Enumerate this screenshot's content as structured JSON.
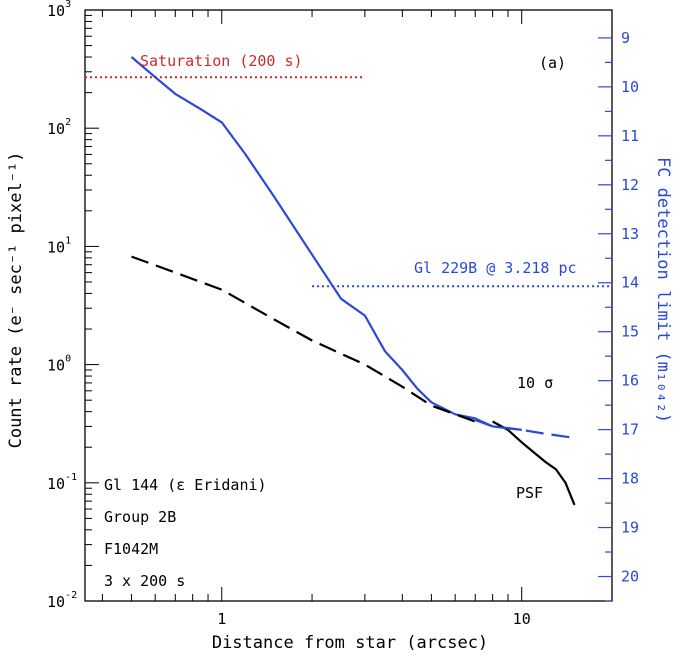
{
  "chart_data": {
    "type": "line",
    "panel_label": "(a)",
    "x_scale": "log",
    "y_scale": "log",
    "xlim": [
      0.35,
      20
    ],
    "ylim": [
      0.01,
      1000
    ],
    "xlabel": "Distance from star (arcsec)",
    "ylabel": "Count rate (e⁻ sec⁻¹ pixel⁻¹)",
    "y2label": "FC detection limit (m₁₀₄₂)",
    "x_ticks": [
      {
        "value": 1,
        "label": "1"
      },
      {
        "value": 10,
        "label": "10"
      }
    ],
    "y_ticks": [
      {
        "value": 0.01,
        "base": "10",
        "exp": "-2"
      },
      {
        "value": 0.1,
        "base": "10",
        "exp": "-1"
      },
      {
        "value": 1,
        "base": "10",
        "exp": "0"
      },
      {
        "value": 10,
        "base": "10",
        "exp": "1"
      },
      {
        "value": 100,
        "base": "10",
        "exp": "2"
      },
      {
        "value": 1000,
        "base": "10",
        "exp": "3"
      }
    ],
    "y2_ticks": [
      "9",
      "10",
      "11",
      "12",
      "13",
      "14",
      "15",
      "16",
      "17",
      "18",
      "19",
      "20"
    ],
    "y2_range": [
      8.43,
      20.5
    ],
    "series": [
      {
        "name": "Gl 144 curve",
        "color": "#2a49d6",
        "style": "solid",
        "x": [
          0.5,
          0.6,
          0.7,
          0.85,
          1.0,
          1.2,
          1.5,
          2.0,
          2.5,
          3.0,
          3.5,
          4.0,
          4.5,
          5.0,
          6.0,
          7.0,
          8.0,
          9.0,
          10.0
        ],
        "y": [
          400,
          270,
          195,
          145,
          112,
          60,
          26,
          8.5,
          3.6,
          2.6,
          1.3,
          0.9,
          0.62,
          0.48,
          0.38,
          0.35,
          0.3,
          0.29,
          0.28
        ]
      },
      {
        "name": "PSF",
        "color": "#000000",
        "style": "solid",
        "x": [
          8.0,
          9.0,
          10.0,
          11.0,
          12.0,
          13.0,
          14.0,
          15.0
        ],
        "y": [
          0.33,
          0.28,
          0.22,
          0.18,
          0.15,
          0.13,
          0.1,
          0.065
        ]
      },
      {
        "name": "10 σ",
        "color": "#000000",
        "style": "dashed",
        "x": [
          0.5,
          0.7,
          1.0,
          1.5,
          2.0,
          3.0,
          4.0,
          5.0,
          7.0
        ],
        "y": [
          8.2,
          6.0,
          4.3,
          2.4,
          1.6,
          1.0,
          0.65,
          0.45,
          0.33
        ]
      },
      {
        "name": "10 σ extension",
        "color": "#2a49d6",
        "style": "dashed",
        "x": [
          7.0,
          8.0,
          10.0,
          12.0,
          15.0
        ],
        "y": [
          0.34,
          0.3,
          0.28,
          0.26,
          0.24
        ]
      }
    ],
    "reference_lines": [
      {
        "label": "Saturation (200 s)",
        "color": "#cc2a2a",
        "y": 270,
        "x_start": 0.35,
        "x_end": 3.0
      },
      {
        "label": "Gl 229B @ 3.218 pc",
        "color": "#2a49d6",
        "y": 4.6,
        "x_start": 2.0,
        "x_end": 20
      }
    ],
    "annotations": {
      "sigma_label": "10 σ",
      "psf_label": "PSF",
      "info_lines": [
        "Gl 144 (ε Eridani)",
        "Group 2B",
        "F1042M",
        "3 x 200 s"
      ]
    }
  }
}
